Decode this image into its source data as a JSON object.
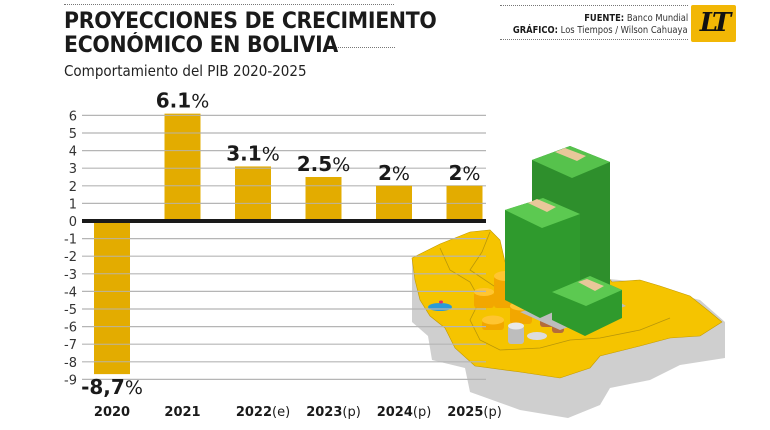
{
  "header": {
    "title_line1": "PROYECCIONES DE CRECIMIENTO",
    "title_line2": "ECONÓMICO EN BOLIVIA",
    "subtitle": "Comportamiento del PIB 2020-2025",
    "source_label": "FUENTE:",
    "source_value": "Banco Mundial",
    "graphic_label": "GRÁFICO:",
    "graphic_value": "Los Tiempos / Wilson Cahuaya",
    "logo_text": "LT"
  },
  "colors": {
    "bar": "#e3ac00",
    "zero_line": "#1a1a1a",
    "grid": "#b5b5b5",
    "logo_bg": "#f2b705",
    "map_fill": "#f5c400",
    "map_side": "#c9c9c9",
    "money_green": "#3aa335"
  },
  "chart_data": {
    "type": "bar",
    "title": "Proyecciones de crecimiento económico en Bolivia",
    "subtitle": "Comportamiento del PIB 2020-2025",
    "categories": [
      "2020",
      "2021",
      "2022",
      "2023",
      "2024",
      "2025"
    ],
    "category_suffixes": [
      "",
      "",
      "(e)",
      "(p)",
      "(p)",
      "(p)"
    ],
    "values": [
      -8.7,
      6.1,
      3.1,
      2.5,
      2.0,
      2.0
    ],
    "data_labels": [
      {
        "num": "-8,7",
        "pct": "%"
      },
      {
        "num": "6.1",
        "pct": "%"
      },
      {
        "num": "3.1",
        "pct": "%"
      },
      {
        "num": "2.5",
        "pct": "%"
      },
      {
        "num": "2",
        "pct": "%"
      },
      {
        "num": "2",
        "pct": "%"
      }
    ],
    "yticks": [
      6,
      5,
      4,
      3,
      2,
      1,
      0,
      -1,
      -2,
      -3,
      -4,
      -5,
      -6,
      -7,
      -8,
      -9
    ],
    "ylim": [
      -9,
      6
    ],
    "xlabel": "",
    "ylabel": "",
    "grid": true,
    "legend": "none",
    "source": "Banco Mundial"
  }
}
